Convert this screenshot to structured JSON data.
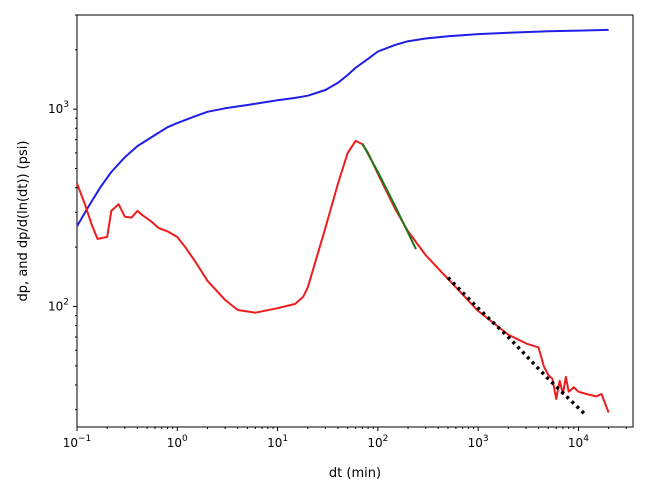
{
  "chart_data": {
    "type": "line",
    "xlabel": "dt (min)",
    "ylabel": "dp, and dp/d(ln(dt)) (psi)",
    "xscale": "log",
    "yscale": "log",
    "xlim": [
      0.1,
      35000
    ],
    "ylim": [
      24.5,
      3000
    ],
    "grid": false,
    "x_ticks": [
      {
        "value": 0.1,
        "base": "10",
        "exp": "−1"
      },
      {
        "value": 1,
        "base": "10",
        "exp": "0"
      },
      {
        "value": 10,
        "base": "10",
        "exp": "1"
      },
      {
        "value": 100,
        "base": "10",
        "exp": "2"
      },
      {
        "value": 1000,
        "base": "10",
        "exp": "3"
      },
      {
        "value": 10000,
        "base": "10",
        "exp": "4"
      }
    ],
    "y_ticks": [
      {
        "value": 100,
        "base": "10",
        "exp": "2"
      },
      {
        "value": 1000,
        "base": "10",
        "exp": "3"
      }
    ],
    "series": [
      {
        "color": "#1f1fe6",
        "style": "solid",
        "points": [
          [
            0.1,
            255
          ],
          [
            0.13,
            320
          ],
          [
            0.17,
            400
          ],
          [
            0.22,
            480
          ],
          [
            0.3,
            570
          ],
          [
            0.4,
            650
          ],
          [
            0.6,
            740
          ],
          [
            0.8,
            810
          ],
          [
            1,
            850
          ],
          [
            1.5,
            920
          ],
          [
            2,
            970
          ],
          [
            3,
            1010
          ],
          [
            5,
            1050
          ],
          [
            8,
            1090
          ],
          [
            10,
            1110
          ],
          [
            15,
            1140
          ],
          [
            20,
            1170
          ],
          [
            30,
            1250
          ],
          [
            40,
            1360
          ],
          [
            50,
            1490
          ],
          [
            60,
            1620
          ],
          [
            80,
            1800
          ],
          [
            100,
            1960
          ],
          [
            150,
            2120
          ],
          [
            200,
            2210
          ],
          [
            300,
            2280
          ],
          [
            500,
            2340
          ],
          [
            1000,
            2400
          ],
          [
            2000,
            2440
          ],
          [
            5000,
            2480
          ],
          [
            10000,
            2500
          ],
          [
            20000,
            2520
          ]
        ]
      },
      {
        "color": "#ee1c1c",
        "style": "solid",
        "points": [
          [
            0.1,
            420
          ],
          [
            0.12,
            330
          ],
          [
            0.14,
            260
          ],
          [
            0.16,
            220
          ],
          [
            0.2,
            225
          ],
          [
            0.22,
            305
          ],
          [
            0.26,
            330
          ],
          [
            0.3,
            285
          ],
          [
            0.35,
            282
          ],
          [
            0.4,
            305
          ],
          [
            0.45,
            290
          ],
          [
            0.55,
            270
          ],
          [
            0.65,
            250
          ],
          [
            0.8,
            240
          ],
          [
            1,
            225
          ],
          [
            1.2,
            200
          ],
          [
            1.5,
            170
          ],
          [
            2,
            135
          ],
          [
            3,
            108
          ],
          [
            4,
            96
          ],
          [
            6,
            93
          ],
          [
            10,
            98
          ],
          [
            15,
            103
          ],
          [
            18,
            112
          ],
          [
            20,
            125
          ],
          [
            30,
            250
          ],
          [
            40,
            420
          ],
          [
            50,
            600
          ],
          [
            60,
            690
          ],
          [
            70,
            665
          ],
          [
            80,
            600
          ],
          [
            100,
            470
          ],
          [
            150,
            310
          ],
          [
            200,
            240
          ],
          [
            300,
            182
          ],
          [
            500,
            138
          ],
          [
            1000,
            95
          ],
          [
            2000,
            72
          ],
          [
            3000,
            65
          ],
          [
            4000,
            62
          ],
          [
            4500,
            50
          ],
          [
            5000,
            45
          ],
          [
            5500,
            43
          ],
          [
            6000,
            34
          ],
          [
            6500,
            42
          ],
          [
            7000,
            36
          ],
          [
            7500,
            44
          ],
          [
            8000,
            37
          ],
          [
            9000,
            39
          ],
          [
            10000,
            37
          ],
          [
            12000,
            36
          ],
          [
            15000,
            35
          ],
          [
            17000,
            36
          ],
          [
            20000,
            29
          ]
        ]
      },
      {
        "color": "#1a7a1a",
        "style": "solid",
        "points": [
          [
            70,
            670
          ],
          [
            100,
            480
          ],
          [
            150,
            320
          ],
          [
            240,
            195
          ]
        ]
      },
      {
        "color": "#000000",
        "style": "dotted",
        "points": [
          [
            500,
            140
          ],
          [
            1000,
            98
          ],
          [
            2000,
            70
          ],
          [
            5000,
            43
          ],
          [
            12000,
            28
          ]
        ]
      }
    ]
  }
}
